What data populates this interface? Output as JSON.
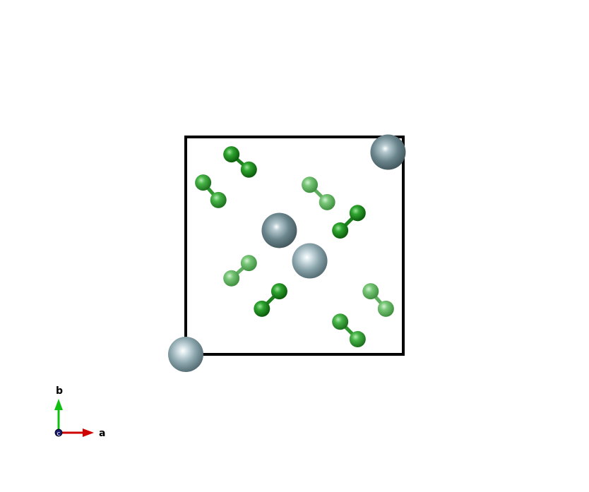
{
  "unit_cell": {
    "edge_color": "#000000"
  },
  "atoms": {
    "large": [
      {
        "a": 0.0,
        "b": 0.0,
        "element": "metal",
        "depth": "front"
      },
      {
        "a": 0.93,
        "b": 0.93,
        "element": "metal",
        "depth": "back"
      },
      {
        "a": 0.43,
        "b": 0.57,
        "element": "metal",
        "depth": "back"
      },
      {
        "a": 0.57,
        "b": 0.43,
        "element": "metal",
        "depth": "front"
      }
    ],
    "dimers": [
      {
        "p1": [
          0.21,
          0.92
        ],
        "p2": [
          0.29,
          0.85
        ],
        "shade": "dark"
      },
      {
        "p1": [
          0.08,
          0.79
        ],
        "p2": [
          0.15,
          0.71
        ],
        "shade": "mid"
      },
      {
        "p1": [
          0.57,
          0.78
        ],
        "p2": [
          0.65,
          0.7
        ],
        "shade": "light"
      },
      {
        "p1": [
          0.71,
          0.57
        ],
        "p2": [
          0.79,
          0.65
        ],
        "shade": "dark"
      },
      {
        "p1": [
          0.21,
          0.35
        ],
        "p2": [
          0.29,
          0.42
        ],
        "shade": "light"
      },
      {
        "p1": [
          0.35,
          0.21
        ],
        "p2": [
          0.43,
          0.29
        ],
        "shade": "dark"
      },
      {
        "p1": [
          0.71,
          0.15
        ],
        "p2": [
          0.79,
          0.07
        ],
        "shade": "mid"
      },
      {
        "p1": [
          0.85,
          0.29
        ],
        "p2": [
          0.92,
          0.21
        ],
        "shade": "light"
      }
    ],
    "colors": {
      "metal_front": "#7f9aa3",
      "metal_back": "#5f7880",
      "dimer_dark": "#1e8f1e",
      "dimer_mid": "#32a032",
      "dimer_light": "#6cbc6c"
    }
  },
  "axes_indicator": {
    "a_label": "a",
    "b_label": "b",
    "c_label": "c",
    "a_color": "#d00000",
    "b_color": "#10c010",
    "c_color": "#1a1a6e"
  }
}
